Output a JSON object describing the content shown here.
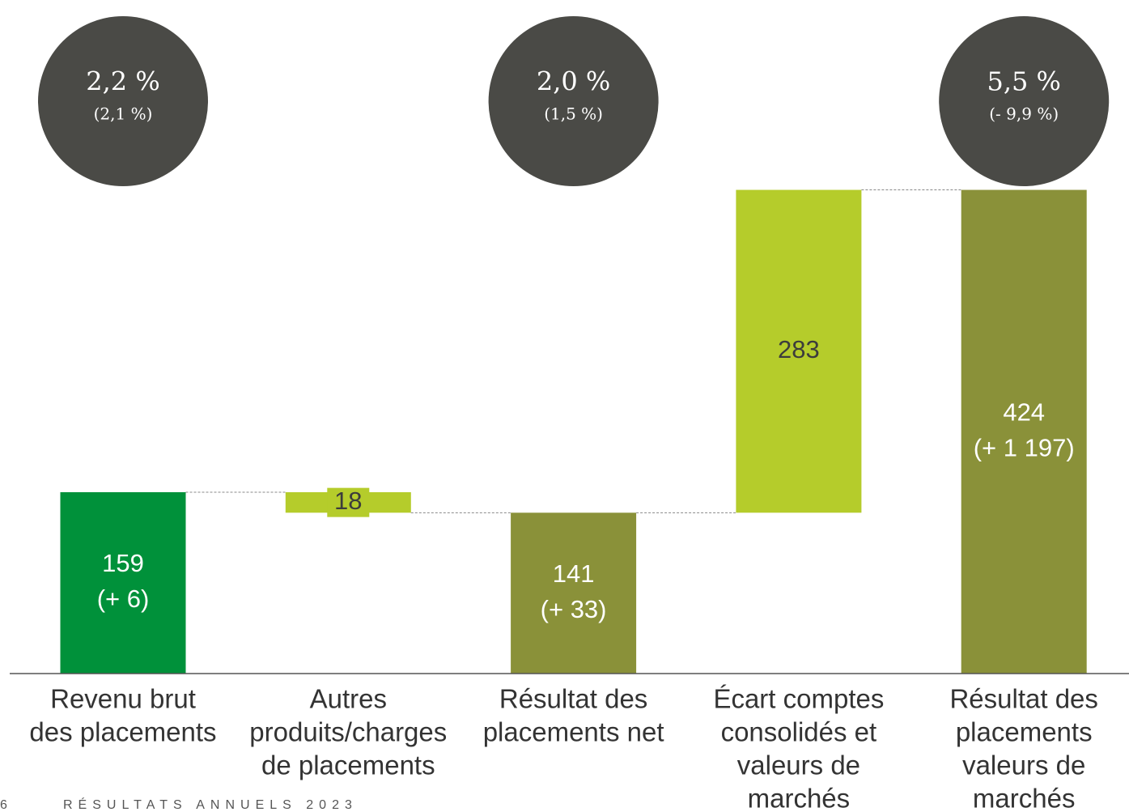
{
  "chart_data": {
    "type": "waterfall",
    "categories": [
      [
        "Revenu brut",
        "des placements"
      ],
      [
        "Autres",
        "produits/charges",
        "de placements"
      ],
      [
        "Résultat des",
        "placements net"
      ],
      [
        "Écart comptes",
        "consolidés et",
        "valeurs de",
        "marchés"
      ],
      [
        "Résultat des",
        "placements",
        "valeurs de",
        "marchés"
      ]
    ],
    "values": [
      159,
      18,
      141,
      283,
      424
    ],
    "measure": [
      "absolute",
      "decrease",
      "total",
      "increase",
      "total"
    ],
    "changes": [
      "(+ 6)",
      null,
      "(+ 33)",
      null,
      "(+ 1 197)"
    ],
    "colors": [
      "#00913a",
      "#b5cc2b",
      "#8a9139",
      "#b5cc2b",
      "#8a9139"
    ],
    "rates": [
      {
        "value": "2,2 %",
        "previous": "(2,1 %)"
      },
      null,
      {
        "value": "2,0 %",
        "previous": "(1,5 %)"
      },
      null,
      {
        "value": "5,5 %",
        "previous": "(- 9,9 %)"
      }
    ],
    "ylim": [
      0,
      440
    ]
  },
  "footer": {
    "page": "6",
    "text": "RÉSULTATS ANNUELS 2023"
  }
}
